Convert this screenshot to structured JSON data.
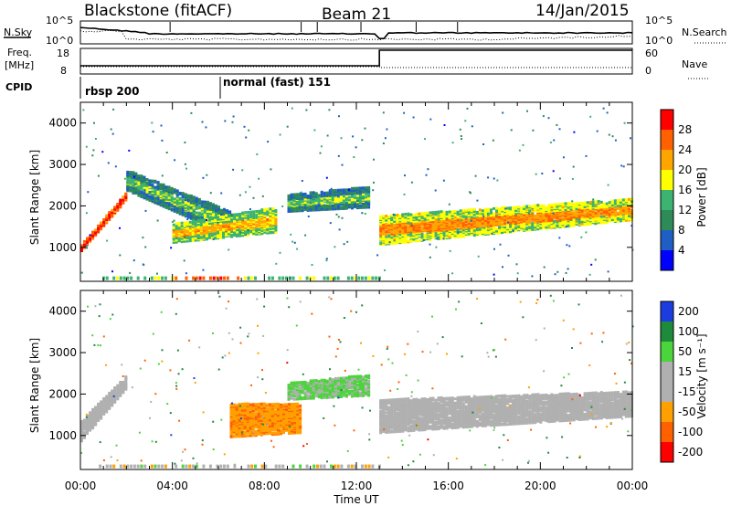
{
  "header": {
    "station": "Blackstone (fitACF)",
    "beam": "Beam 21",
    "date": "14/Jan/2015"
  },
  "left_labels": {
    "nsky": "N.Sky",
    "freq": "Freq.",
    "freq_unit": "[MHz]",
    "cpid": "CPID"
  },
  "right_labels": {
    "nsearch": "N.Search",
    "nave": "Nave"
  },
  "nsky_ticks": [
    "10^5",
    "10^0"
  ],
  "nsearch_ticks": [
    "10^5",
    "10^0"
  ],
  "freq_ticks": [
    "18",
    "8"
  ],
  "nave_ticks": [
    "60",
    "0"
  ],
  "cpid_segments": [
    {
      "label": "rbsp 200",
      "start": "00:00",
      "end": "06:00"
    },
    {
      "label": "normal (fast) 151",
      "start": "06:00",
      "end": "24:00"
    }
  ],
  "time_axis": {
    "label": "Time UT",
    "ticks": [
      "00:00",
      "04:00",
      "08:00",
      "12:00",
      "16:00",
      "20:00",
      "00:00"
    ],
    "range_hours": [
      0,
      24
    ]
  },
  "colors": {
    "power": [
      "#0000ff",
      "#1f5fc4",
      "#2e8b57",
      "#3cb371",
      "#ffff00",
      "#ffa500",
      "#ff6000",
      "#ff0000"
    ],
    "velocity": [
      "#1c3ce0",
      "#1e8a3c",
      "#4cd43c",
      "#b0b0b0",
      "#b0b0b0",
      "#ffa000",
      "#ff6000",
      "#ff0000"
    ]
  },
  "chart_data": [
    {
      "type": "heatmap",
      "name": "power",
      "ylabel": "Slant Range [km]",
      "ylim": [
        180,
        4500
      ],
      "yticks": [
        "1000",
        "2000",
        "3000",
        "4000"
      ],
      "colorbar_label": "Power [dB]",
      "colorbar_ticks": [
        "28",
        "24",
        "20",
        "16",
        "12",
        "8",
        "4"
      ],
      "clim": [
        0,
        30
      ],
      "bands": [
        {
          "t": [
            0.0,
            2.0
          ],
          "r0": [
            950,
            2200
          ],
          "r1": [
            1100,
            2400
          ],
          "p": 24
        },
        {
          "t": [
            2.0,
            6.5
          ],
          "r0": [
            2400,
            1300
          ],
          "r1": [
            2900,
            1900
          ],
          "p": 8
        },
        {
          "t": [
            4.0,
            8.5
          ],
          "r0": [
            1150,
            1400
          ],
          "r1": [
            1600,
            2000
          ],
          "p": 14
        },
        {
          "t": [
            9.0,
            12.5
          ],
          "r0": [
            1900,
            2000
          ],
          "r1": [
            2300,
            2500
          ],
          "p": 8
        },
        {
          "t": [
            13.0,
            24.0
          ],
          "r0": [
            1100,
            1700
          ],
          "r1": [
            1800,
            2200
          ],
          "p": 16
        }
      ]
    },
    {
      "type": "heatmap",
      "name": "velocity",
      "ylabel": "Slant Range [km]",
      "ylim": [
        180,
        4500
      ],
      "yticks": [
        "1000",
        "2000",
        "3000",
        "4000"
      ],
      "colorbar_label": "Velocity [m s⁻¹]",
      "colorbar_ticks": [
        "200",
        "100",
        "50",
        "15",
        "-15",
        "-50",
        "-100",
        "-200"
      ],
      "clim": [
        -250,
        250
      ],
      "bands": [
        {
          "t": [
            0.0,
            2.0
          ],
          "r0": [
            900,
            2200
          ],
          "r1": [
            1400,
            2500
          ],
          "v": 0
        },
        {
          "t": [
            6.5,
            9.5
          ],
          "r0": [
            1000,
            1100
          ],
          "r1": [
            1800,
            1800
          ],
          "v": -60
        },
        {
          "t": [
            9.0,
            12.5
          ],
          "r0": [
            1900,
            2000
          ],
          "r1": [
            2300,
            2500
          ],
          "v": 30
        },
        {
          "t": [
            13.0,
            24.0
          ],
          "r0": [
            1100,
            1500
          ],
          "r1": [
            1900,
            2100
          ],
          "v": 0
        }
      ]
    }
  ]
}
